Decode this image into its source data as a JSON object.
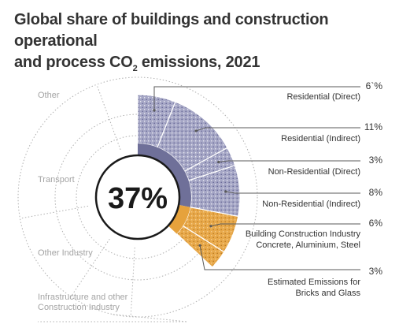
{
  "chart_data": {
    "type": "pie",
    "title_part1": "Global share of buildings and construction operational",
    "title_part2": "and process CO",
    "title_sub": "2",
    "title_part3": " emissions, 2021",
    "center_label": "37%",
    "segments": [
      {
        "label": "Residential (Direct)",
        "value_label": "6`%",
        "value": 6,
        "group": "buildings"
      },
      {
        "label": "Residential (Indirect)",
        "value_label": "11%",
        "value": 11,
        "group": "buildings"
      },
      {
        "label": "Non-Residential (Direct)",
        "value_label": "3%",
        "value": 3,
        "group": "buildings"
      },
      {
        "label": "Non-Residential (Indirect)",
        "value_label": "8%",
        "value": 8,
        "group": "buildings"
      },
      {
        "label_lines": [
          "Building Construction Industry",
          "Concrete, Aluminium, Steel"
        ],
        "value_label": "6%",
        "value": 6,
        "group": "construction"
      },
      {
        "label_lines": [
          "Estimated Emissions for",
          "Bricks and Glass"
        ],
        "value_label": "3%",
        "value": 3,
        "group": "construction"
      }
    ],
    "other_sectors": [
      {
        "label": "Other"
      },
      {
        "label": "Transport"
      },
      {
        "label": "Other Industry"
      },
      {
        "label_lines": [
          "Infrastructure and other",
          "Construction Industry"
        ]
      }
    ],
    "colors": {
      "buildings": "#8e8fb3",
      "buildings_dark": "#6f7099",
      "construction": "#e6a23c",
      "construction_dark": "#c98522",
      "guide": "#b0b0b0",
      "leader": "#5a5a5a"
    }
  }
}
